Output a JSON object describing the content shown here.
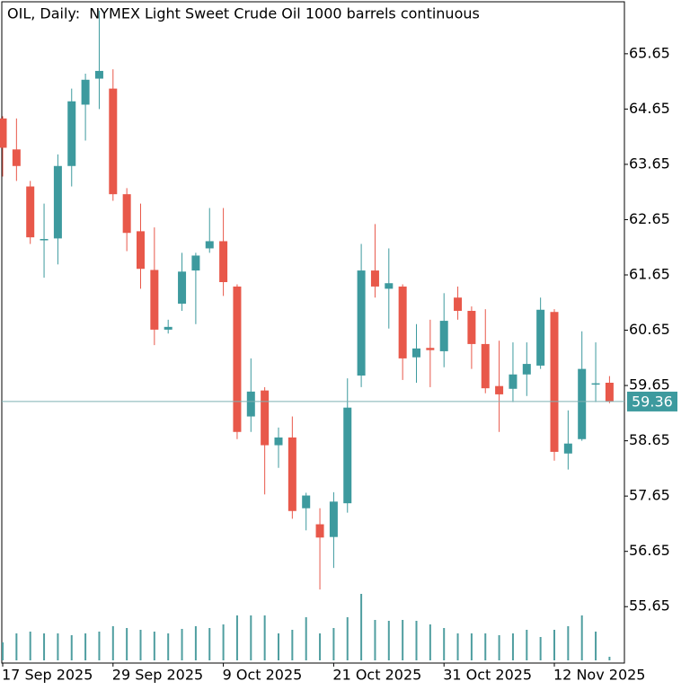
{
  "chart_data": {
    "type": "candlestick",
    "title": "OIL, Daily:  NYMEX Light Sweet Crude Oil 1000 barrels continuous",
    "categories": [
      "17 Sep 2025",
      null,
      null,
      null,
      null,
      null,
      null,
      null,
      "29 Sep 2025",
      null,
      null,
      null,
      null,
      null,
      null,
      null,
      "9 Oct 2025",
      null,
      null,
      null,
      null,
      null,
      null,
      null,
      "21 Oct 2025",
      null,
      null,
      null,
      null,
      null,
      null,
      null,
      "31 Oct 2025",
      null,
      null,
      null,
      null,
      null,
      null,
      null,
      "12 Nov 2025",
      null,
      null,
      null,
      null
    ],
    "open": [
      64.48,
      63.92,
      63.25,
      62.3,
      62.31,
      63.62,
      64.73,
      65.2,
      65.02,
      63.11,
      62.44,
      61.74,
      60.66,
      61.13,
      61.73,
      62.13,
      62.26,
      61.44,
      59.09,
      59.56,
      58.57,
      58.71,
      57.43,
      57.14,
      56.91,
      57.52,
      59.83,
      61.73,
      61.4,
      61.44,
      60.16,
      60.33,
      60.27,
      61.24,
      61.0,
      60.4,
      59.64,
      59.59,
      59.85,
      60.01,
      60.98,
      58.42,
      58.68,
      59.69,
      59.7
    ],
    "high": [
      64.52,
      64.48,
      63.35,
      62.94,
      63.83,
      65.02,
      65.29,
      66.43,
      65.37,
      63.22,
      62.94,
      62.51,
      60.84,
      62.05,
      62.05,
      62.86,
      62.86,
      61.48,
      60.14,
      59.62,
      58.89,
      59.09,
      57.71,
      57.43,
      57.72,
      59.78,
      62.21,
      62.57,
      62.13,
      61.48,
      60.76,
      60.84,
      61.32,
      61.44,
      61.08,
      61.03,
      60.46,
      60.43,
      60.43,
      61.24,
      61.03,
      59.2,
      60.63,
      60.43,
      59.82
    ],
    "low": [
      63.43,
      63.35,
      62.21,
      61.6,
      61.84,
      63.25,
      64.08,
      64.65,
      62.99,
      62.08,
      61.4,
      60.38,
      60.59,
      61.0,
      60.76,
      62.05,
      61.27,
      58.68,
      58.81,
      57.68,
      58.16,
      57.24,
      57.03,
      55.96,
      56.35,
      57.35,
      59.62,
      61.24,
      60.68,
      59.75,
      59.7,
      59.62,
      59.98,
      60.84,
      59.95,
      59.51,
      58.81,
      59.35,
      59.46,
      59.95,
      58.29,
      58.13,
      58.65,
      59.35,
      59.33
    ],
    "close": [
      63.95,
      63.62,
      62.33,
      62.3,
      63.62,
      64.79,
      65.18,
      65.34,
      63.11,
      62.41,
      61.76,
      60.66,
      60.71,
      61.71,
      62.0,
      62.26,
      61.52,
      58.81,
      59.54,
      58.57,
      58.71,
      57.38,
      57.66,
      56.9,
      57.55,
      59.25,
      61.73,
      61.44,
      61.5,
      60.14,
      60.32,
      60.29,
      60.82,
      61.0,
      60.4,
      59.6,
      59.49,
      59.85,
      60.04,
      61.02,
      58.45,
      58.6,
      59.95,
      59.69,
      59.36
    ],
    "volume": [
      20,
      30,
      32,
      30,
      30,
      28,
      30,
      32,
      38,
      36,
      34,
      32,
      30,
      35,
      38,
      36,
      40,
      50,
      50,
      50,
      30,
      34,
      48,
      30,
      36,
      48,
      74,
      45,
      44,
      45,
      44,
      40,
      36,
      30,
      30,
      30,
      28,
      30,
      34,
      26,
      34,
      38,
      50,
      32,
      4
    ],
    "last_price": 59.36,
    "ylim": [
      54.63,
      66.59
    ],
    "yticks": [
      65.65,
      64.65,
      63.65,
      62.65,
      61.65,
      60.65,
      59.65,
      58.65,
      57.65,
      56.65,
      55.65
    ],
    "up_color": "#3d9a9e",
    "down_color": "#e8584a",
    "volume_color": "#4f9ea0",
    "grid": false
  }
}
